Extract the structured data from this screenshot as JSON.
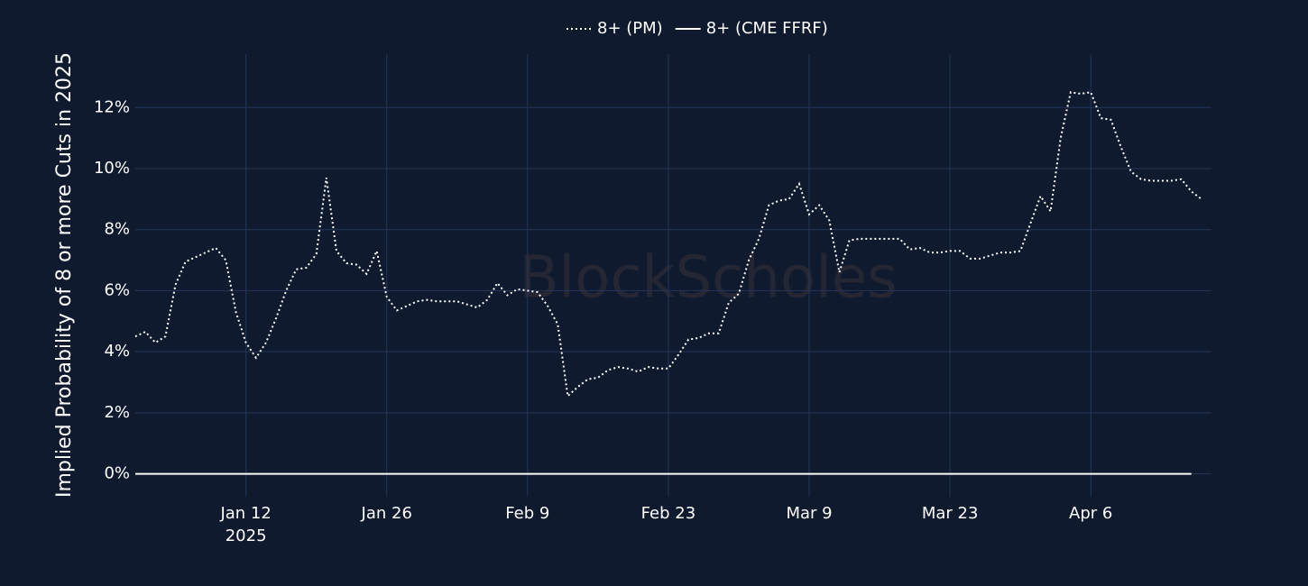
{
  "chart_data": {
    "type": "line",
    "y_label": "Implied Probability of 8 or more Cuts in 2025",
    "watermark": "BlockScholes",
    "x": [
      "2025-01-01",
      "2025-01-02",
      "2025-01-03",
      "2025-01-04",
      "2025-01-05",
      "2025-01-06",
      "2025-01-07",
      "2025-01-08",
      "2025-01-09",
      "2025-01-10",
      "2025-01-11",
      "2025-01-12",
      "2025-01-13",
      "2025-01-14",
      "2025-01-15",
      "2025-01-16",
      "2025-01-17",
      "2025-01-18",
      "2025-01-19",
      "2025-01-20",
      "2025-01-21",
      "2025-01-22",
      "2025-01-23",
      "2025-01-24",
      "2025-01-25",
      "2025-01-26",
      "2025-01-27",
      "2025-01-28",
      "2025-01-29",
      "2025-01-30",
      "2025-01-31",
      "2025-02-01",
      "2025-02-02",
      "2025-02-03",
      "2025-02-04",
      "2025-02-05",
      "2025-02-06",
      "2025-02-07",
      "2025-02-08",
      "2025-02-09",
      "2025-02-10",
      "2025-02-11",
      "2025-02-12",
      "2025-02-13",
      "2025-02-14",
      "2025-02-15",
      "2025-02-16",
      "2025-02-17",
      "2025-02-18",
      "2025-02-19",
      "2025-02-20",
      "2025-02-21",
      "2025-02-22",
      "2025-02-23",
      "2025-02-24",
      "2025-02-25",
      "2025-02-26",
      "2025-02-27",
      "2025-02-28",
      "2025-03-01",
      "2025-03-02",
      "2025-03-03",
      "2025-03-04",
      "2025-03-05",
      "2025-03-06",
      "2025-03-07",
      "2025-03-08",
      "2025-03-09",
      "2025-03-10",
      "2025-03-11",
      "2025-03-12",
      "2025-03-13",
      "2025-03-14",
      "2025-03-15",
      "2025-03-16",
      "2025-03-17",
      "2025-03-18",
      "2025-03-19",
      "2025-03-20",
      "2025-03-21",
      "2025-03-22",
      "2025-03-23",
      "2025-03-24",
      "2025-03-25",
      "2025-03-26",
      "2025-03-27",
      "2025-03-28",
      "2025-03-29",
      "2025-03-30",
      "2025-03-31",
      "2025-04-01",
      "2025-04-02",
      "2025-04-03",
      "2025-04-04",
      "2025-04-05",
      "2025-04-06",
      "2025-04-07",
      "2025-04-08",
      "2025-04-09",
      "2025-04-10",
      "2025-04-11",
      "2025-04-12",
      "2025-04-13",
      "2025-04-14",
      "2025-04-15",
      "2025-04-16",
      "2025-04-17"
    ],
    "series": [
      {
        "name": "8+ (PM)",
        "color": "#ffffff",
        "dash": "dot",
        "values": [
          4.5,
          4.65,
          4.3,
          4.5,
          6.2,
          6.95,
          7.1,
          7.25,
          7.4,
          7.0,
          5.3,
          4.3,
          3.8,
          4.3,
          5.1,
          6.0,
          6.7,
          6.75,
          7.2,
          9.7,
          7.3,
          6.9,
          6.85,
          6.55,
          7.3,
          5.8,
          5.35,
          5.5,
          5.65,
          5.7,
          5.65,
          5.65,
          5.65,
          5.55,
          5.45,
          5.7,
          6.25,
          5.85,
          6.05,
          6.0,
          5.95,
          5.5,
          4.9,
          2.55,
          2.85,
          3.1,
          3.15,
          3.4,
          3.5,
          3.45,
          3.35,
          3.5,
          3.45,
          3.45,
          3.9,
          4.4,
          4.45,
          4.6,
          4.6,
          5.6,
          5.9,
          7.0,
          7.7,
          8.8,
          8.95,
          9.0,
          9.5,
          8.5,
          8.8,
          8.3,
          6.6,
          7.65,
          7.7,
          7.7,
          7.7,
          7.7,
          7.7,
          7.35,
          7.4,
          7.25,
          7.25,
          7.3,
          7.3,
          7.05,
          7.05,
          7.15,
          7.25,
          7.25,
          7.3,
          8.2,
          9.1,
          8.6,
          11.0,
          12.5,
          12.45,
          12.5,
          11.65,
          11.6,
          10.7,
          9.9,
          9.65,
          9.6,
          9.6,
          9.6,
          9.65,
          9.25,
          9.0
        ]
      },
      {
        "name": "8+ (CME FFRF)",
        "color": "#ffffff",
        "dash": "solid",
        "values": [
          0,
          0,
          0,
          0,
          0,
          0,
          0,
          0,
          0,
          0,
          0,
          0,
          0,
          0,
          0,
          0,
          0,
          0,
          0,
          0,
          0,
          0,
          0,
          0,
          0,
          0,
          0,
          0,
          0,
          0,
          0,
          0,
          0,
          0,
          0,
          0,
          0,
          0,
          0,
          0,
          0,
          0,
          0,
          0,
          0,
          0,
          0,
          0,
          0,
          0,
          0,
          0,
          0,
          0,
          0,
          0,
          0,
          0,
          0,
          0,
          0,
          0,
          0,
          0,
          0,
          0,
          0,
          0,
          0,
          0,
          0,
          0,
          0,
          0,
          0,
          0,
          0,
          0,
          0,
          0,
          0,
          0,
          0,
          0,
          0,
          0,
          0,
          0,
          0,
          0,
          0,
          0,
          0,
          0,
          0,
          0,
          0,
          0,
          0,
          0,
          0,
          0,
          0,
          0,
          0,
          0,
          null
        ]
      }
    ],
    "xlim": [
      "2025-01-01",
      "2025-04-18"
    ],
    "xticks": [
      {
        "value": "2025-01-12",
        "label": "Jan 12"
      },
      {
        "value": "2025-01-26",
        "label": "Jan 26"
      },
      {
        "value": "2025-02-09",
        "label": "Feb 9"
      },
      {
        "value": "2025-02-23",
        "label": "Feb 23"
      },
      {
        "value": "2025-03-09",
        "label": "Mar 9"
      },
      {
        "value": "2025-03-23",
        "label": "Mar 23"
      },
      {
        "value": "2025-04-06",
        "label": "Apr 6"
      }
    ],
    "x_year_label": "2025",
    "ylim": [
      -0.75,
      13.75
    ],
    "yticks": [
      {
        "value": 0,
        "label": "0%"
      },
      {
        "value": 2,
        "label": "2%"
      },
      {
        "value": 4,
        "label": "4%"
      },
      {
        "value": 6,
        "label": "6%"
      },
      {
        "value": 8,
        "label": "8%"
      },
      {
        "value": 10,
        "label": "10%"
      },
      {
        "value": 12,
        "label": "12%"
      }
    ],
    "grid": true,
    "legend": "top"
  }
}
